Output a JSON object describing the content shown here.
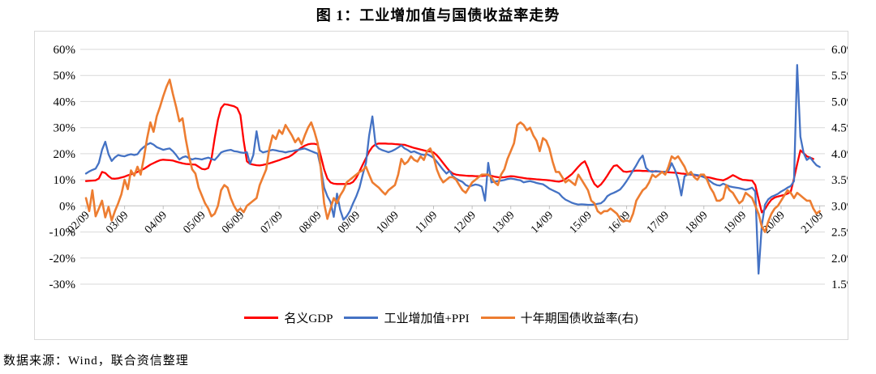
{
  "source_note": "数据来源：Wind，联合资信整理",
  "chart_data": {
    "type": "line",
    "title": "图 1：工业增加值与国债收益率走势",
    "grid": true,
    "legend_position": "bottom",
    "x_start": "2002-09",
    "x_end": "2021-09",
    "x_tick_labels": [
      "02/09",
      "03/09",
      "04/09",
      "05/09",
      "06/09",
      "07/09",
      "08/09",
      "09/09",
      "10/09",
      "11/09",
      "12/09",
      "13/09",
      "14/09",
      "15/09",
      "16/09",
      "17/09",
      "18/09",
      "19/09",
      "20/09",
      "21/09"
    ],
    "left_axis": {
      "unit": "%",
      "min": -30,
      "max": 60,
      "ticks": [
        "60%",
        "50%",
        "40%",
        "30%",
        "20%",
        "10%",
        "0%",
        "-10%",
        "-20%",
        "-30%"
      ]
    },
    "right_axis": {
      "unit": "%",
      "min": 1.5,
      "max": 6.0,
      "ticks": [
        "6.0%",
        "5.5%",
        "5.0%",
        "4.5%",
        "4.0%",
        "3.5%",
        "3.0%",
        "2.5%",
        "2.0%",
        "1.5%"
      ]
    },
    "series": [
      {
        "name": "名义GDP",
        "color": "#ff0000",
        "axis": "left",
        "values": [
          9.5,
          9.6,
          9.7,
          9.8,
          10.5,
          13.0,
          12.6,
          11.4,
          10.5,
          10.4,
          10.6,
          10.9,
          11.2,
          11.7,
          12.1,
          12.4,
          13.0,
          13.6,
          14.2,
          15.0,
          15.8,
          16.4,
          17.0,
          17.5,
          17.7,
          17.6,
          17.5,
          17.4,
          17.0,
          16.6,
          16.3,
          16.1,
          16.0,
          15.9,
          15.8,
          15.0,
          14.2,
          14.0,
          14.5,
          18.0,
          26.0,
          33.0,
          37.5,
          39.0,
          38.8,
          38.5,
          38.2,
          37.5,
          34.8,
          25.0,
          17.1,
          16.1,
          15.8,
          15.6,
          15.5,
          15.7,
          16.0,
          16.3,
          16.7,
          17.1,
          17.5,
          18.0,
          18.4,
          18.8,
          19.5,
          20.5,
          21.5,
          22.4,
          23.1,
          23.6,
          23.8,
          23.8,
          23.5,
          19.0,
          14.0,
          10.5,
          9.0,
          8.5,
          8.4,
          8.4,
          8.4,
          8.4,
          8.5,
          9.2,
          10.8,
          13.2,
          15.8,
          18.3,
          20.8,
          22.6,
          23.6,
          23.9,
          23.9,
          23.9,
          23.8,
          23.8,
          23.7,
          23.6,
          23.5,
          23.4,
          23.0,
          22.6,
          22.2,
          21.9,
          21.6,
          21.3,
          21.0,
          20.8,
          20.5,
          19.4,
          18.0,
          16.4,
          14.8,
          13.4,
          12.4,
          12.0,
          11.8,
          11.7,
          11.6,
          11.5,
          11.5,
          11.4,
          11.4,
          11.5,
          11.6,
          11.7,
          11.5,
          11.2,
          11.0,
          10.9,
          11.0,
          11.2,
          11.4,
          11.3,
          11.1,
          10.9,
          10.7,
          10.5,
          10.4,
          10.3,
          10.2,
          10.1,
          10.0,
          9.9,
          9.8,
          9.6,
          9.4,
          9.3,
          9.6,
          10.3,
          11.2,
          12.2,
          13.6,
          15.0,
          16.3,
          17.1,
          14.5,
          10.8,
          8.4,
          7.2,
          8.2,
          9.8,
          11.6,
          13.6,
          15.3,
          15.6,
          14.4,
          13.2,
          13.0,
          13.2,
          13.4,
          13.5,
          13.5,
          13.4,
          13.4,
          13.3,
          13.3,
          13.2,
          13.2,
          13.1,
          13.0,
          12.9,
          12.8,
          12.7,
          12.6,
          12.4,
          12.3,
          12.1,
          12.0,
          11.8,
          11.6,
          11.4,
          11.2,
          11.0,
          10.8,
          10.5,
          10.2,
          10.0,
          9.8,
          10.3,
          11.0,
          11.8,
          11.2,
          10.5,
          10.0,
          9.9,
          9.8,
          9.7,
          8.0,
          2.5,
          -2.5,
          -1.2,
          0.8,
          2.4,
          3.2,
          3.6,
          3.9,
          4.2,
          4.7,
          5.4,
          10.5,
          16.0,
          21.3,
          20.2,
          19.0,
          18.5,
          18.0,
          null,
          null
        ]
      },
      {
        "name": "工业增加值+PPI",
        "color": "#4472c4",
        "axis": "left",
        "values": [
          12.4,
          13.2,
          13.8,
          14.3,
          16.5,
          21.5,
          24.6,
          19.8,
          17.2,
          18.6,
          19.5,
          19.2,
          19.0,
          19.5,
          19.8,
          19.5,
          19.8,
          21.5,
          22.6,
          23.5,
          24.1,
          23.5,
          22.5,
          22.0,
          21.5,
          21.8,
          22.0,
          21.0,
          19.5,
          17.8,
          18.6,
          19.0,
          18.3,
          17.8,
          18.2,
          18.0,
          17.8,
          18.2,
          18.5,
          18.0,
          17.6,
          19.0,
          20.5,
          21.0,
          21.3,
          21.5,
          21.0,
          20.8,
          20.5,
          20.3,
          20.6,
          16.1,
          19.5,
          28.6,
          21.3,
          20.5,
          20.8,
          21.2,
          21.5,
          21.3,
          21.0,
          20.8,
          20.5,
          20.8,
          21.0,
          21.3,
          21.5,
          21.8,
          22.0,
          21.5,
          21.0,
          20.5,
          20.0,
          14.5,
          7.0,
          3.7,
          1.5,
          -4.2,
          4.7,
          -1.5,
          -5.3,
          -4.0,
          -2.0,
          1.0,
          3.7,
          7.0,
          12.0,
          16.5,
          27.0,
          34.3,
          23.3,
          22.0,
          21.4,
          21.0,
          20.6,
          21.0,
          21.6,
          22.4,
          23.2,
          22.0,
          21.4,
          20.6,
          20.9,
          20.3,
          19.8,
          19.5,
          19.8,
          19.2,
          18.4,
          17.0,
          15.4,
          13.8,
          12.4,
          13.4,
          11.4,
          10.4,
          9.8,
          9.2,
          8.0,
          7.5,
          7.8,
          8.2,
          8.0,
          7.4,
          2.0,
          16.5,
          9.0,
          9.3,
          9.5,
          9.7,
          9.9,
          10.3,
          10.5,
          10.3,
          10.0,
          9.8,
          9.0,
          9.3,
          9.5,
          9.2,
          8.8,
          8.5,
          8.3,
          7.5,
          6.6,
          6.0,
          5.4,
          4.8,
          3.4,
          2.4,
          1.8,
          1.2,
          0.8,
          0.5,
          0.6,
          0.5,
          0.4,
          0.4,
          0.5,
          0.8,
          1.0,
          2.0,
          3.7,
          4.5,
          5.0,
          5.6,
          6.3,
          7.8,
          9.5,
          11.5,
          13.6,
          15.6,
          17.8,
          19.3,
          14.6,
          13.4,
          13.0,
          13.4,
          13.2,
          12.9,
          13.1,
          13.5,
          16.4,
          13.8,
          10.2,
          4.0,
          11.4,
          12.0,
          12.2,
          12.0,
          11.8,
          11.5,
          11.0,
          10.4,
          9.4,
          8.5,
          8.0,
          7.8,
          8.5,
          8.0,
          7.5,
          7.2,
          7.0,
          6.8,
          6.5,
          6.2,
          6.5,
          7.0,
          5.5,
          -26.0,
          -7.5,
          0.5,
          2.5,
          3.5,
          4.0,
          4.6,
          5.5,
          6.2,
          7.0,
          7.6,
          9.5,
          54.0,
          26.5,
          20.2,
          17.6,
          18.6,
          17.0,
          15.6,
          14.9
        ]
      },
      {
        "name": "十年期国债收益率(右)",
        "color": "#ed7d31",
        "axis": "right",
        "values": [
          3.15,
          2.9,
          3.3,
          2.8,
          2.95,
          3.1,
          2.78,
          2.98,
          2.72,
          2.9,
          3.05,
          3.22,
          3.5,
          3.32,
          3.68,
          3.58,
          3.75,
          3.6,
          3.92,
          4.3,
          4.6,
          4.42,
          4.72,
          4.9,
          5.1,
          5.28,
          5.42,
          5.15,
          4.9,
          4.62,
          4.68,
          4.28,
          3.95,
          3.7,
          3.62,
          3.35,
          3.2,
          3.05,
          2.95,
          2.8,
          2.85,
          3.0,
          3.3,
          3.4,
          3.35,
          3.15,
          3.0,
          2.9,
          2.95,
          2.88,
          3.0,
          3.05,
          3.1,
          3.15,
          3.4,
          3.55,
          3.7,
          4.1,
          4.35,
          4.28,
          4.45,
          4.38,
          4.55,
          4.45,
          4.35,
          4.22,
          4.3,
          4.18,
          4.35,
          4.5,
          4.6,
          4.42,
          4.2,
          3.7,
          3.05,
          2.75,
          2.95,
          3.15,
          3.05,
          3.2,
          3.3,
          3.45,
          3.5,
          3.55,
          3.6,
          3.65,
          3.68,
          3.75,
          3.6,
          3.45,
          3.4,
          3.35,
          3.28,
          3.22,
          3.3,
          3.35,
          3.4,
          3.6,
          3.9,
          3.8,
          3.85,
          3.95,
          3.88,
          3.85,
          3.95,
          3.88,
          4.05,
          4.1,
          3.95,
          3.7,
          3.55,
          3.45,
          3.5,
          3.55,
          3.55,
          3.5,
          3.4,
          3.3,
          3.25,
          3.35,
          3.45,
          3.5,
          3.55,
          3.6,
          3.6,
          3.6,
          3.55,
          3.45,
          3.4,
          3.6,
          3.7,
          3.9,
          4.05,
          4.2,
          4.55,
          4.6,
          4.55,
          4.45,
          4.5,
          4.35,
          4.25,
          4.05,
          4.3,
          4.25,
          4.1,
          3.85,
          3.65,
          3.65,
          3.55,
          3.45,
          3.5,
          3.45,
          3.4,
          3.6,
          3.5,
          3.4,
          3.3,
          3.1,
          3.05,
          2.9,
          2.85,
          2.9,
          2.9,
          2.95,
          2.9,
          2.85,
          2.75,
          2.7,
          2.72,
          2.7,
          2.85,
          3.1,
          3.2,
          3.3,
          3.35,
          3.45,
          3.6,
          3.55,
          3.6,
          3.65,
          3.6,
          3.75,
          3.95,
          3.9,
          3.95,
          3.85,
          3.75,
          3.6,
          3.65,
          3.55,
          3.5,
          3.6,
          3.6,
          3.5,
          3.35,
          3.25,
          3.1,
          3.1,
          3.15,
          3.4,
          3.3,
          3.25,
          3.15,
          3.05,
          3.1,
          3.25,
          3.2,
          3.15,
          3.0,
          2.85,
          2.6,
          2.5,
          2.7,
          2.85,
          2.95,
          3.0,
          3.1,
          3.2,
          3.3,
          3.25,
          3.15,
          3.25,
          3.2,
          3.15,
          3.1,
          3.1,
          2.95,
          2.85,
          2.9
        ]
      }
    ]
  }
}
